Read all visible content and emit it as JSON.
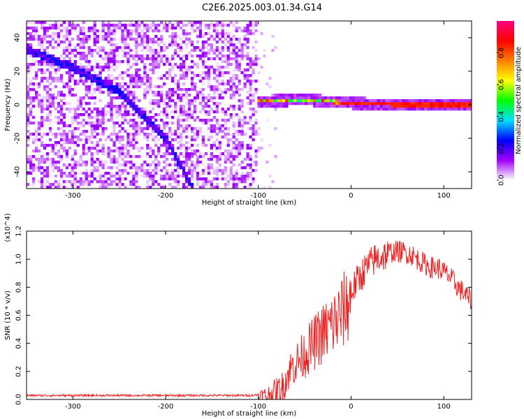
{
  "title": "C2E6.2025.003.01.34.G14",
  "chart_data": [
    {
      "type": "heatmap",
      "xlabel": "Height of straight line (km)",
      "ylabel": "Frequency (Hz)",
      "xlim": [
        -350,
        130
      ],
      "ylim": [
        -50,
        50
      ],
      "xticks": [
        -300,
        -200,
        -100,
        0,
        100
      ],
      "yticks": [
        -40,
        -20,
        0,
        20,
        40
      ],
      "colorbar": {
        "label": "Normalized spectral amplitude",
        "range": [
          0,
          1
        ],
        "ticks": [
          "0.0",
          "0.2",
          "0.4",
          "0.6",
          "0.8"
        ],
        "colormap": [
          "#ffffff",
          "#a000ff",
          "#0000ff",
          "#00e0ff",
          "#00ff00",
          "#ffff00",
          "#ff8000",
          "#ff0000",
          "#ff0080"
        ]
      },
      "features": [
        {
          "name": "descending trace",
          "x": [
            -350,
            -300,
            -250,
            -200,
            -170
          ],
          "y": [
            33,
            22,
            8,
            -20,
            -50
          ]
        },
        {
          "name": "stable carrier",
          "x": [
            -100,
            -50,
            0,
            50,
            130
          ],
          "y": [
            2,
            3,
            1,
            0,
            0
          ]
        }
      ],
      "noise_x_max": -100
    },
    {
      "type": "line",
      "xlabel": "Height of straight line (km)",
      "ylabel": "SNR (10 * v/v)",
      "y_multiplier": "(x10^4)",
      "xlim": [
        -350,
        130
      ],
      "ylim": [
        0,
        1.2
      ],
      "xticks": [
        -300,
        -200,
        -100,
        0,
        100
      ],
      "yticks": [
        "0.0",
        "0.2",
        "0.4",
        "0.6",
        "0.8",
        "1.0",
        "1.2"
      ],
      "series": [
        {
          "color": "#ee2222",
          "x": [
            -350,
            -300,
            -250,
            -200,
            -150,
            -110,
            -90,
            -75,
            -65,
            -55,
            -45,
            -35,
            -25,
            -15,
            -5,
            5,
            15,
            25,
            35,
            45,
            55,
            65,
            75,
            85,
            95,
            105,
            115,
            125,
            130
          ],
          "y": [
            0.03,
            0.03,
            0.03,
            0.03,
            0.03,
            0.03,
            0.04,
            0.1,
            0.25,
            0.32,
            0.4,
            0.48,
            0.55,
            0.62,
            0.72,
            0.85,
            0.95,
            1.02,
            1.05,
            1.07,
            1.07,
            1.05,
            1.0,
            0.96,
            0.95,
            0.9,
            0.82,
            0.75,
            0.72
          ]
        }
      ]
    }
  ]
}
